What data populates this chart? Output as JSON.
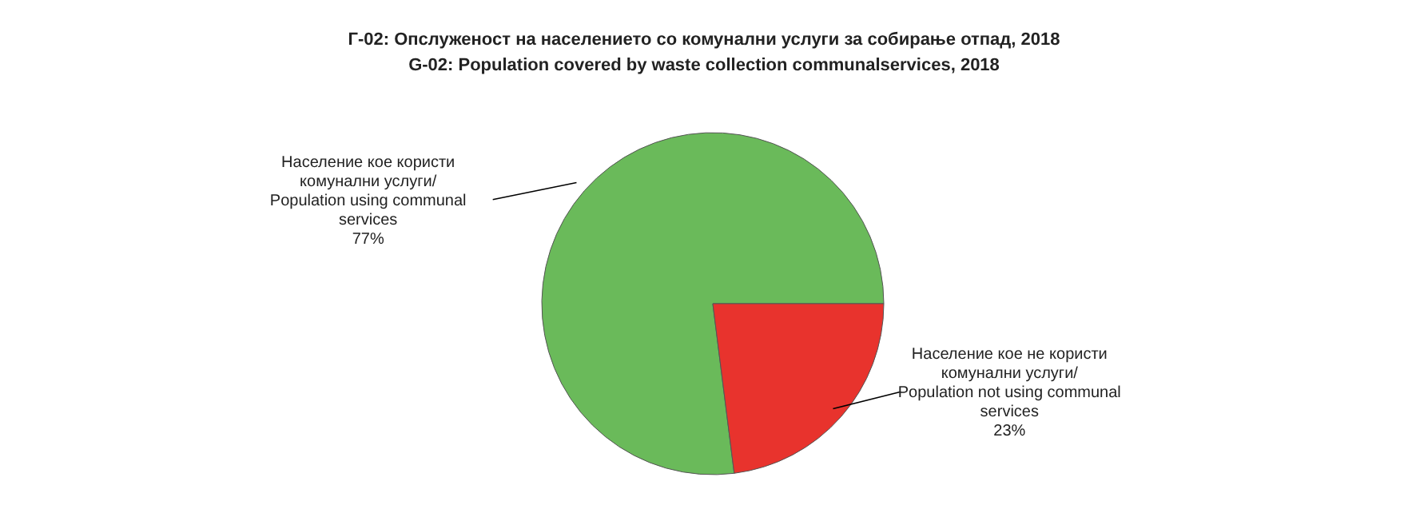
{
  "chart_data": {
    "type": "pie",
    "title": "Г-02: Опслуженост на населението со комунални услуги за собирање отпад, 2018",
    "subtitle": "G-02: Population  covered by waste collection communalservices, 2018",
    "categories": [
      "Население кое користи комунални услуги/ Population using communal services",
      "Население кое не користи комунални услуги/ Population not using communal services"
    ],
    "values": [
      77,
      23
    ],
    "colors": [
      "#6aba5a",
      "#e8332d"
    ],
    "value_labels": [
      "77%",
      "23%"
    ]
  }
}
